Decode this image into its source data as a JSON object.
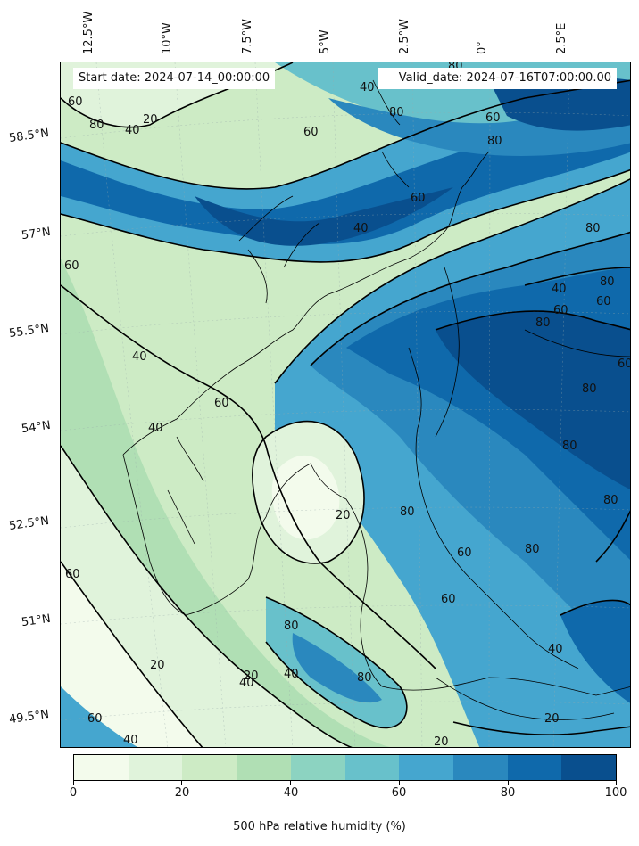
{
  "map": {
    "start_date": "Start date: 2024-07-14_00:00:00",
    "valid_date": "Valid_date: 2024-07-16T07:00:00.00",
    "lon_labels": [
      "12.5°W",
      "10°W",
      "7.5°W",
      "5°W",
      "2.5°W",
      "0°",
      "2.5°E"
    ],
    "lat_labels": [
      "58.5°N",
      "57°N",
      "55.5°N",
      "54°N",
      "52.5°N",
      "51°N",
      "49.5°N"
    ],
    "contour_labels": [
      "80",
      "40",
      "60",
      "20",
      "80",
      "40",
      "60",
      "80",
      "60",
      "80",
      "60",
      "40",
      "60",
      "80",
      "40",
      "60",
      "80",
      "60",
      "40",
      "60",
      "80",
      "40",
      "80",
      "60",
      "80",
      "80",
      "80",
      "20",
      "60",
      "80",
      "60",
      "60",
      "80",
      "40",
      "80",
      "20",
      "40",
      "20",
      "60",
      "40",
      "20",
      "40",
      "20"
    ],
    "colors": {
      "c0": "#f3fbec",
      "c1": "#e0f3db",
      "c2": "#cdebc5",
      "c3": "#b0dfb4",
      "c4": "#8cd3c1",
      "c5": "#68c1cb",
      "c6": "#45a6cf",
      "c7": "#2a88be",
      "c8": "#0f69ab",
      "c9": "#094f8e"
    }
  },
  "colorbar": {
    "title": "500 hPa relative humidity (%)",
    "ticks": [
      "0",
      "20",
      "40",
      "60",
      "80",
      "100"
    ],
    "colors": [
      "#f3fbec",
      "#e0f3db",
      "#cdebc5",
      "#b0dfb4",
      "#8cd3c1",
      "#68c1cb",
      "#45a6cf",
      "#2a88be",
      "#0f69ab",
      "#094f8e"
    ]
  }
}
